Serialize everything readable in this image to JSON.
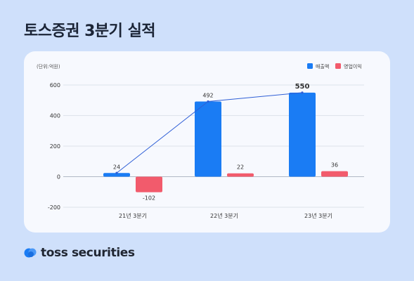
{
  "title": "토스증권 3분기 실적",
  "logo_text": "toss securities",
  "colors": {
    "revenue": "#1a7cf4",
    "profit": "#f25b6c",
    "line": "#2f5fd6",
    "background": "#cfe0fb"
  },
  "chart_data": {
    "type": "bar",
    "unit_label": "(단위:억원)",
    "categories": [
      "21년 3분기",
      "22년 3분기",
      "23년 3분기"
    ],
    "series": [
      {
        "name": "매출액",
        "values": [
          24,
          492,
          550
        ],
        "labels": [
          "24",
          "492",
          "550"
        ]
      },
      {
        "name": "영업이익",
        "values": [
          -102,
          22,
          36
        ],
        "labels": [
          "-102",
          "22",
          "36"
        ]
      }
    ],
    "yticks": [
      "600",
      "400",
      "200",
      "0",
      "-200"
    ],
    "ylim": [
      -200,
      600
    ],
    "grid": true,
    "legend": "top-right",
    "line_series": "매출액"
  }
}
